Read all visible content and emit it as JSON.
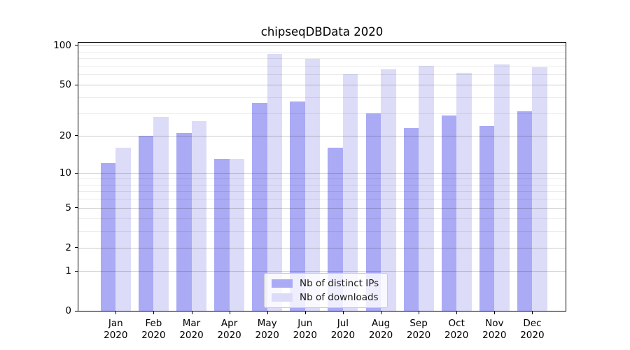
{
  "title": "chipseqDBData 2020",
  "chart_data": {
    "type": "bar",
    "title": "chipseqDBData 2020",
    "x_tick_months": [
      "Jan",
      "Feb",
      "Mar",
      "Apr",
      "May",
      "Jun",
      "Jul",
      "Aug",
      "Sep",
      "Oct",
      "Nov",
      "Dec"
    ],
    "x_tick_year": "2020",
    "series": [
      {
        "name": "Nb of distinct IPs",
        "color": "#aaaaf5",
        "values": [
          12,
          20,
          21,
          13,
          36,
          37,
          16,
          30,
          23,
          29,
          24,
          31
        ]
      },
      {
        "name": "Nb of downloads",
        "color": "#dcdcf8",
        "values": [
          16,
          28,
          26,
          13,
          86,
          79,
          60,
          66,
          70,
          62,
          72,
          68
        ]
      }
    ],
    "y_axis": {
      "scale": "log10(1+y)",
      "tick_values": [
        0,
        1,
        2,
        5,
        10,
        20,
        50,
        100
      ],
      "minor_gridline_values": [
        3,
        4,
        6,
        7,
        8,
        9,
        30,
        40,
        60,
        70,
        80,
        90
      ],
      "limit_bottom": 0,
      "limit_top": 105
    },
    "grid": "horizontal",
    "legend_position": "lower-center"
  },
  "colors": {
    "distinct_ips": "#aaaaf5",
    "downloads": "#dcdcf8",
    "major_grid": "rgba(0,0,0,0.20)",
    "minor_grid": "rgba(0,0,0,0.08)",
    "spine": "#000000",
    "legend_border": "#cccccc",
    "legend_bg": "rgba(255,255,255,0.8)",
    "text": "#000000"
  }
}
